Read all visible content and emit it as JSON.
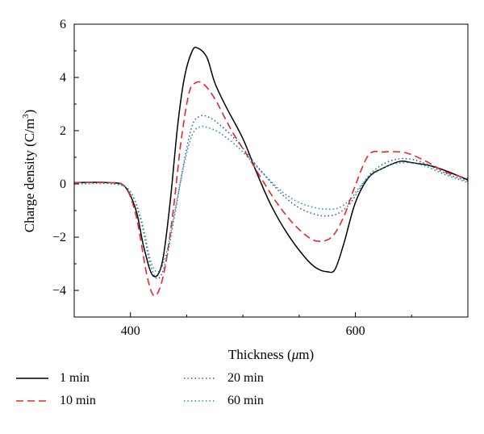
{
  "chart_data": {
    "type": "line",
    "title": "",
    "xlabel_prefix": "Thickness (",
    "xlabel_unit_mu": "μ",
    "xlabel_suffix": "m)",
    "ylabel_main": "Charge density (C/m",
    "ylabel_sup": "3",
    "ylabel_close": ")",
    "xlim": [
      350,
      700
    ],
    "ylim": [
      -5,
      6
    ],
    "x_ticks": [
      400,
      600
    ],
    "y_ticks": [
      -4,
      -2,
      0,
      2,
      4,
      6
    ],
    "y_minor_step": 1,
    "x_minor_step": 50,
    "grid": false,
    "legend_position": "bottom",
    "series": [
      {
        "name": "1 min",
        "color": "#000000",
        "dash": "solid",
        "x": [
          350,
          380,
          395,
          405,
          412,
          420,
          428,
          435,
          442,
          448,
          455,
          460,
          468,
          475,
          485,
          500,
          512,
          525,
          540,
          555,
          565,
          575,
          582,
          590,
          600,
          612,
          625,
          640,
          650,
          665,
          680,
          700
        ],
        "y": [
          0.05,
          0.05,
          -0.1,
          -1.0,
          -2.4,
          -3.45,
          -3.0,
          -0.8,
          2.2,
          4.0,
          5.0,
          5.1,
          4.75,
          3.8,
          2.9,
          1.7,
          0.45,
          -0.8,
          -1.9,
          -2.75,
          -3.15,
          -3.3,
          -3.2,
          -2.2,
          -0.7,
          0.25,
          0.6,
          0.85,
          0.8,
          0.7,
          0.5,
          0.15
        ]
      },
      {
        "name": "10 min",
        "color": "#e8262a",
        "dash": "dashed",
        "x": [
          350,
          380,
          395,
          405,
          415,
          422,
          430,
          438,
          445,
          452,
          458,
          465,
          475,
          490,
          505,
          515,
          530,
          545,
          560,
          570,
          580,
          590,
          600,
          612,
          625,
          640,
          650,
          665,
          680,
          700
        ],
        "y": [
          0.05,
          0.05,
          -0.1,
          -1.2,
          -3.5,
          -4.2,
          -3.3,
          -1.0,
          1.6,
          3.4,
          3.8,
          3.75,
          3.2,
          2.0,
          1.0,
          0.3,
          -0.7,
          -1.5,
          -2.05,
          -2.15,
          -1.95,
          -1.2,
          -0.05,
          1.1,
          1.2,
          1.2,
          1.1,
          0.8,
          0.45,
          0.2
        ]
      },
      {
        "name": "20 min",
        "color": "#3d55b8",
        "dash": "dotted",
        "x": [
          350,
          385,
          400,
          410,
          418,
          425,
          432,
          440,
          448,
          455,
          462,
          470,
          480,
          495,
          510,
          520,
          535,
          550,
          565,
          575,
          585,
          595,
          605,
          615,
          630,
          645,
          660,
          680,
          700
        ],
        "y": [
          0.0,
          0.0,
          -0.3,
          -1.5,
          -3.1,
          -3.55,
          -2.8,
          -1.0,
          0.9,
          2.2,
          2.55,
          2.5,
          2.2,
          1.6,
          0.8,
          0.3,
          -0.4,
          -0.9,
          -1.15,
          -1.2,
          -1.1,
          -0.75,
          -0.1,
          0.45,
          0.85,
          0.95,
          0.8,
          0.4,
          0.1
        ]
      },
      {
        "name": "60 min",
        "color": "#1a9a8a",
        "dash": "dotted",
        "x": [
          350,
          385,
          400,
          410,
          418,
          425,
          432,
          440,
          448,
          455,
          462,
          470,
          480,
          495,
          510,
          520,
          535,
          550,
          565,
          575,
          585,
          595,
          605,
          615,
          630,
          645,
          660,
          680,
          700
        ],
        "y": [
          0.0,
          0.0,
          -0.3,
          -1.4,
          -2.9,
          -3.3,
          -2.6,
          -0.9,
          0.8,
          1.85,
          2.15,
          2.1,
          1.9,
          1.4,
          0.75,
          0.3,
          -0.3,
          -0.7,
          -0.9,
          -0.95,
          -0.9,
          -0.6,
          -0.05,
          0.35,
          0.7,
          0.8,
          0.7,
          0.35,
          0.05
        ]
      }
    ]
  }
}
